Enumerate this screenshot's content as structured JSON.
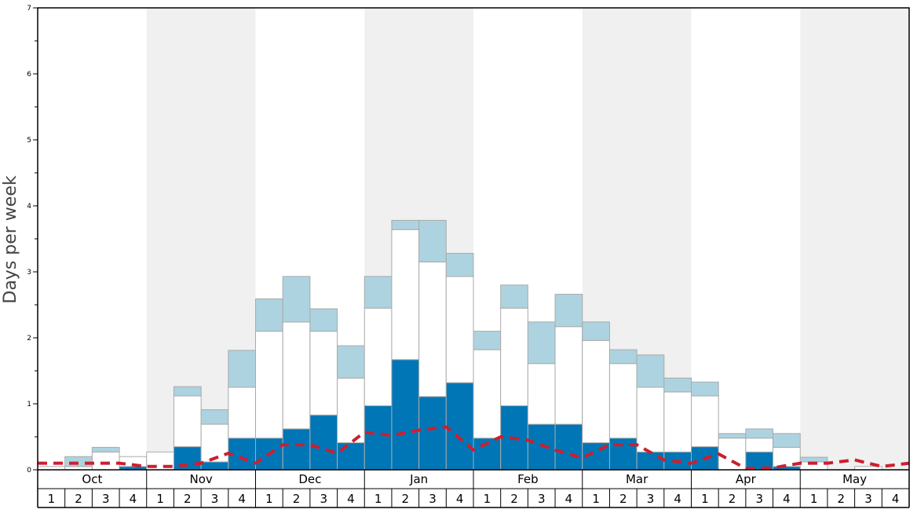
{
  "chart_data": {
    "type": "bar",
    "ylabel": "Days per week",
    "ylim": [
      0,
      7
    ],
    "y_ticks": [
      "0",
      "1",
      "2",
      "3",
      "4",
      "5",
      "6",
      "7"
    ],
    "months": [
      "Oct",
      "Nov",
      "Dec",
      "Jan",
      "Feb",
      "Mar",
      "Apr",
      "May"
    ],
    "week_labels": [
      "1",
      "2",
      "3",
      "4",
      "1",
      "2",
      "3",
      "4",
      "1",
      "2",
      "3",
      "4",
      "1",
      "2",
      "3",
      "4",
      "1",
      "2",
      "3",
      "4",
      "1",
      "2",
      "3",
      "4",
      "1",
      "2",
      "3",
      "4",
      "1",
      "2",
      "3",
      "4"
    ],
    "stacked": true,
    "series": [
      {
        "values": [
          0,
          0,
          0,
          0.05,
          0,
          0.35,
          0.12,
          0.48,
          0.48,
          0.62,
          0.83,
          0.41,
          0.97,
          1.67,
          1.11,
          1.32,
          0.48,
          0.97,
          0.69,
          0.69,
          0.41,
          0.48,
          0.27,
          0.27,
          0.35,
          0,
          0.27,
          0.05,
          0,
          0,
          0,
          0
        ]
      },
      {
        "values": [
          0.05,
          0.05,
          0.27,
          0.15,
          0.27,
          0.77,
          0.57,
          0.77,
          1.62,
          1.62,
          1.27,
          0.98,
          1.48,
          1.97,
          2.04,
          1.61,
          1.34,
          1.48,
          0.92,
          1.48,
          1.55,
          1.13,
          0.98,
          0.91,
          0.77,
          0.48,
          0.21,
          0.29,
          0.12,
          0,
          0.05,
          0
        ]
      },
      {
        "values": [
          0,
          0.15,
          0.07,
          0,
          0,
          0.14,
          0.22,
          0.56,
          0.49,
          0.69,
          0.34,
          0.49,
          0.48,
          0.14,
          0.63,
          0.35,
          0.28,
          0.35,
          0.63,
          0.49,
          0.28,
          0.21,
          0.49,
          0.21,
          0.21,
          0.07,
          0.14,
          0.21,
          0.07,
          0,
          0,
          0
        ]
      }
    ],
    "average_line": [
      0.1,
      0.1,
      0.1,
      0.1,
      0.05,
      0.05,
      0.1,
      0.25,
      0.1,
      0.38,
      0.38,
      0.25,
      0.57,
      0.52,
      0.6,
      0.65,
      0.3,
      0.5,
      0.45,
      0.3,
      0.18,
      0.38,
      0.38,
      0.15,
      0.1,
      0.24,
      0.02,
      0.03,
      0.1,
      0.1,
      0.15,
      0.05,
      0.1
    ],
    "colors": {
      "series": [
        "#0076b6",
        "#ffffff",
        "#add3e0"
      ],
      "bar_stroke": "#aaaaaa",
      "band": "#f0f0f0",
      "average_line": "#cc1f2f",
      "frame": "#000000"
    }
  }
}
